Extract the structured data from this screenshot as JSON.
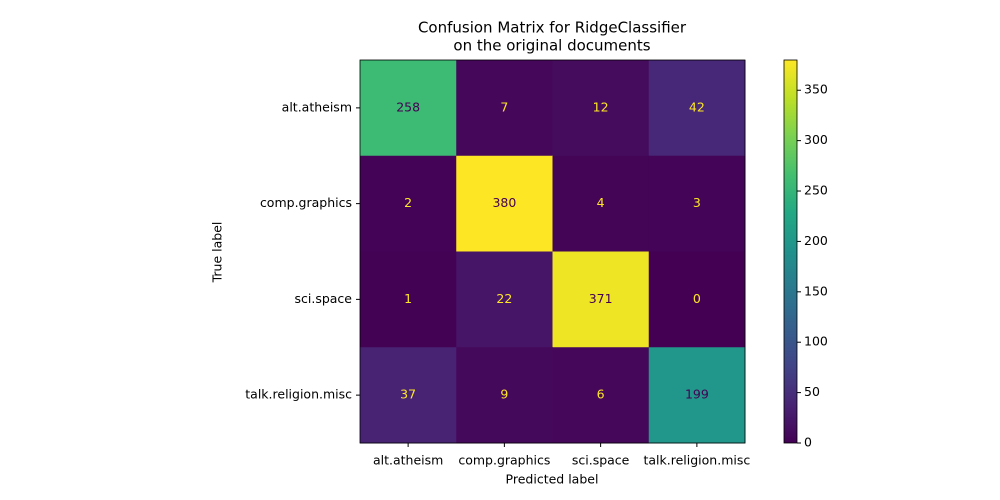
{
  "chart_data": {
    "type": "heatmap",
    "title": [
      "Confusion Matrix for RidgeClassifier",
      "on the original documents"
    ],
    "x_label": "Predicted label",
    "y_label": "True label",
    "x_categories": [
      "alt.atheism",
      "comp.graphics",
      "sci.space",
      "talk.religion.misc"
    ],
    "y_categories": [
      "alt.atheism",
      "comp.graphics",
      "sci.space",
      "talk.religion.misc"
    ],
    "values": [
      [
        258,
        7,
        12,
        42
      ],
      [
        2,
        380,
        4,
        3
      ],
      [
        1,
        22,
        371,
        0
      ],
      [
        37,
        9,
        6,
        199
      ]
    ],
    "colormap": "viridis",
    "clim": [
      0,
      380
    ],
    "cticks": [
      0,
      50,
      100,
      150,
      200,
      250,
      300,
      350
    ]
  }
}
